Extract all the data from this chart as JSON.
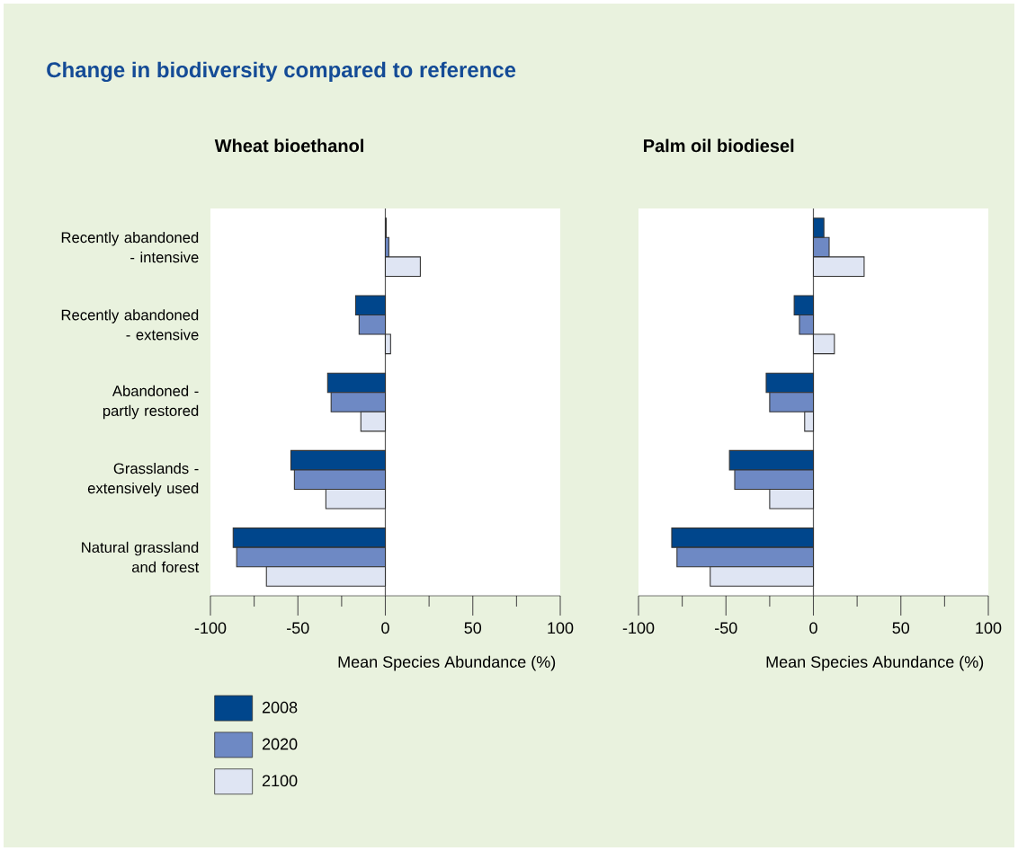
{
  "chart_data": [
    {
      "type": "bar",
      "orientation": "horizontal",
      "title": "Wheat bioethanol",
      "annotations": [
        "Change in biodiversity compared to reference"
      ],
      "xlabel": "Mean Species Abundance (%)",
      "categories": [
        "Recently abandoned - intensive",
        "Recently abandoned - extensive",
        "Abandoned - partly restored",
        "Grasslands - extensively used",
        "Natural grassland and forest"
      ],
      "series": [
        {
          "name": "2008",
          "color": "#00468c",
          "values": [
            0.5,
            -17,
            -33,
            -54,
            -87
          ]
        },
        {
          "name": "2020",
          "color": "#6e89c4",
          "values": [
            2,
            -15,
            -31,
            -52,
            -85
          ]
        },
        {
          "name": "2100",
          "color": "#dfe5f3",
          "values": [
            20,
            3,
            -14,
            -34,
            -68
          ]
        }
      ],
      "xlim": [
        -100,
        100
      ],
      "xticks": [
        -100,
        {
          "value": -75,
          "label": null
        },
        -50,
        {
          "value": -25,
          "label": null
        },
        0,
        {
          "value": 25,
          "label": null
        },
        50,
        {
          "value": 75,
          "label": null
        },
        100
      ],
      "legend": "bottom left"
    },
    {
      "type": "bar",
      "orientation": "horizontal",
      "title": "Palm oil biodiesel",
      "xlabel": "Mean Species Abundance (%)",
      "categories": [
        null,
        null,
        null,
        null,
        null
      ],
      "series": [
        {
          "color": "#00468c",
          "values": [
            6,
            -11,
            -27,
            -48,
            -81
          ]
        },
        {
          "color": "#6e89c4",
          "values": [
            9,
            -8,
            -25,
            -45,
            -78
          ]
        },
        {
          "color": "#dfe5f3",
          "values": [
            29,
            12,
            -5,
            -25,
            -59
          ]
        }
      ],
      "xlim": [
        -100,
        100
      ],
      "xticks": [
        -100,
        {
          "value": -75,
          "label": null
        },
        -50,
        {
          "value": -25,
          "label": null
        },
        0,
        {
          "value": 25,
          "label": null
        },
        50,
        {
          "value": 75,
          "label": null
        },
        100
      ]
    }
  ]
}
